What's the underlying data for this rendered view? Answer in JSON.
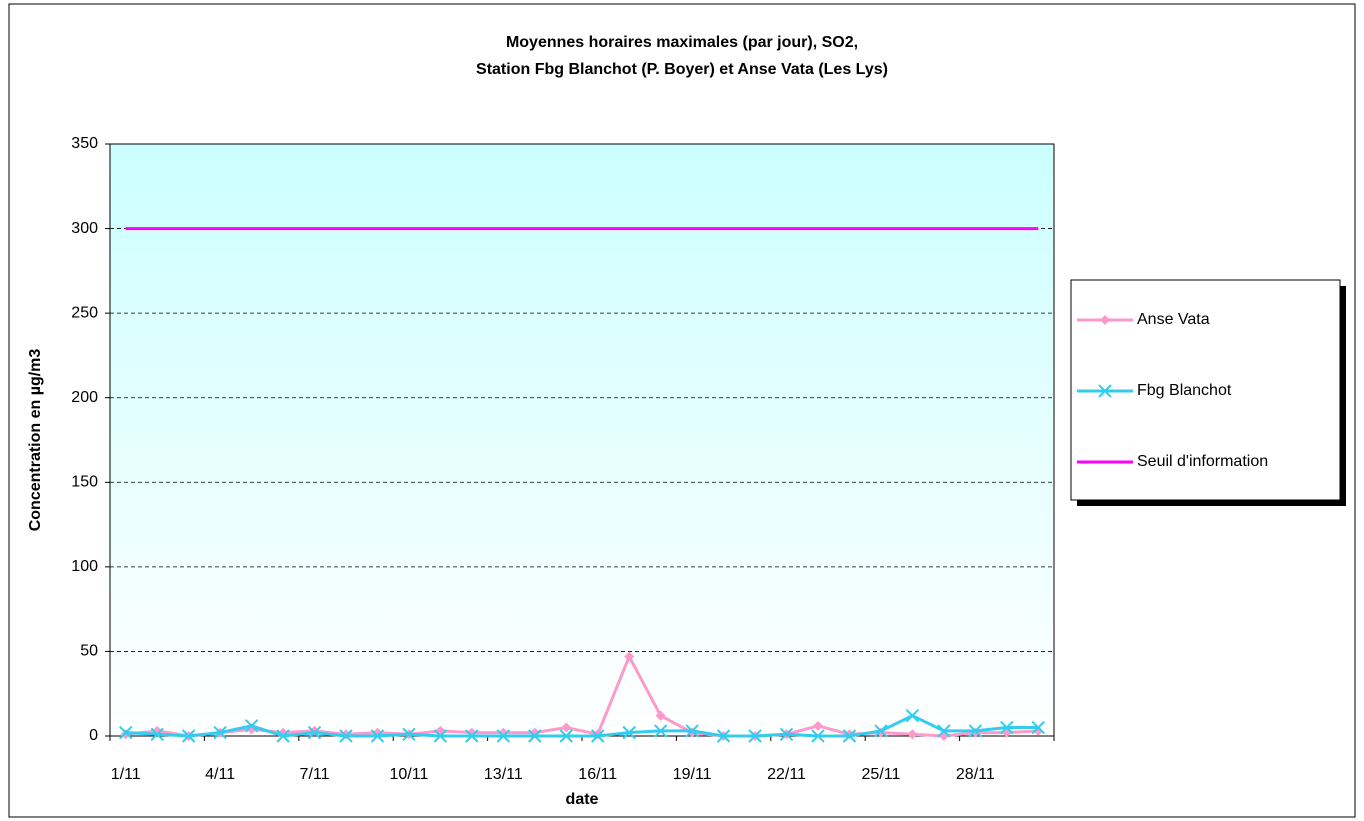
{
  "chart_data": {
    "type": "line",
    "title": [
      "Moyennes horaires maximales (par jour), SO2,",
      "Station Fbg Blanchot (P. Boyer) et Anse Vata (Les Lys)"
    ],
    "x_label": "date",
    "y_label": "Concentration en µg/m3",
    "categories": [
      "1/11",
      null,
      null,
      "4/11",
      null,
      null,
      "7/11",
      null,
      null,
      "10/11",
      null,
      null,
      "13/11",
      null,
      null,
      "16/11",
      null,
      null,
      "19/11",
      null,
      null,
      "22/11",
      null,
      null,
      "25/11",
      null,
      null,
      "28/11",
      null,
      null
    ],
    "series": [
      {
        "name": "Anse Vata",
        "color": "#ff99cc",
        "marker": "diamond",
        "values": [
          1,
          3,
          0,
          2,
          4,
          2,
          3,
          1,
          2,
          1,
          3,
          2,
          2,
          2,
          5,
          1,
          47,
          12,
          2,
          0,
          0,
          1,
          6,
          1,
          2,
          1,
          0,
          2,
          2,
          3
        ]
      },
      {
        "name": "Fbg Blanchot",
        "color": "#33ccee",
        "marker": "x",
        "values": [
          2,
          1,
          0,
          2,
          6,
          0,
          2,
          0,
          0,
          1,
          0,
          0,
          0,
          0,
          0,
          0,
          2,
          3,
          3,
          0,
          0,
          1,
          0,
          0,
          3,
          12,
          3,
          3,
          5,
          5
        ]
      },
      {
        "name": "Seuil d'information",
        "color": "#ff00ff",
        "marker": "none",
        "values": [
          300,
          300,
          300,
          300,
          300,
          300,
          300,
          300,
          300,
          300,
          300,
          300,
          300,
          300,
          300,
          300,
          300,
          300,
          300,
          300,
          300,
          300,
          300,
          300,
          300,
          300,
          300,
          300,
          300,
          300
        ]
      }
    ],
    "ylim": [
      0,
      350
    ],
    "yticks": [
      0,
      50,
      100,
      150,
      200,
      250,
      300,
      350
    ],
    "grid": true,
    "legend": "right"
  }
}
